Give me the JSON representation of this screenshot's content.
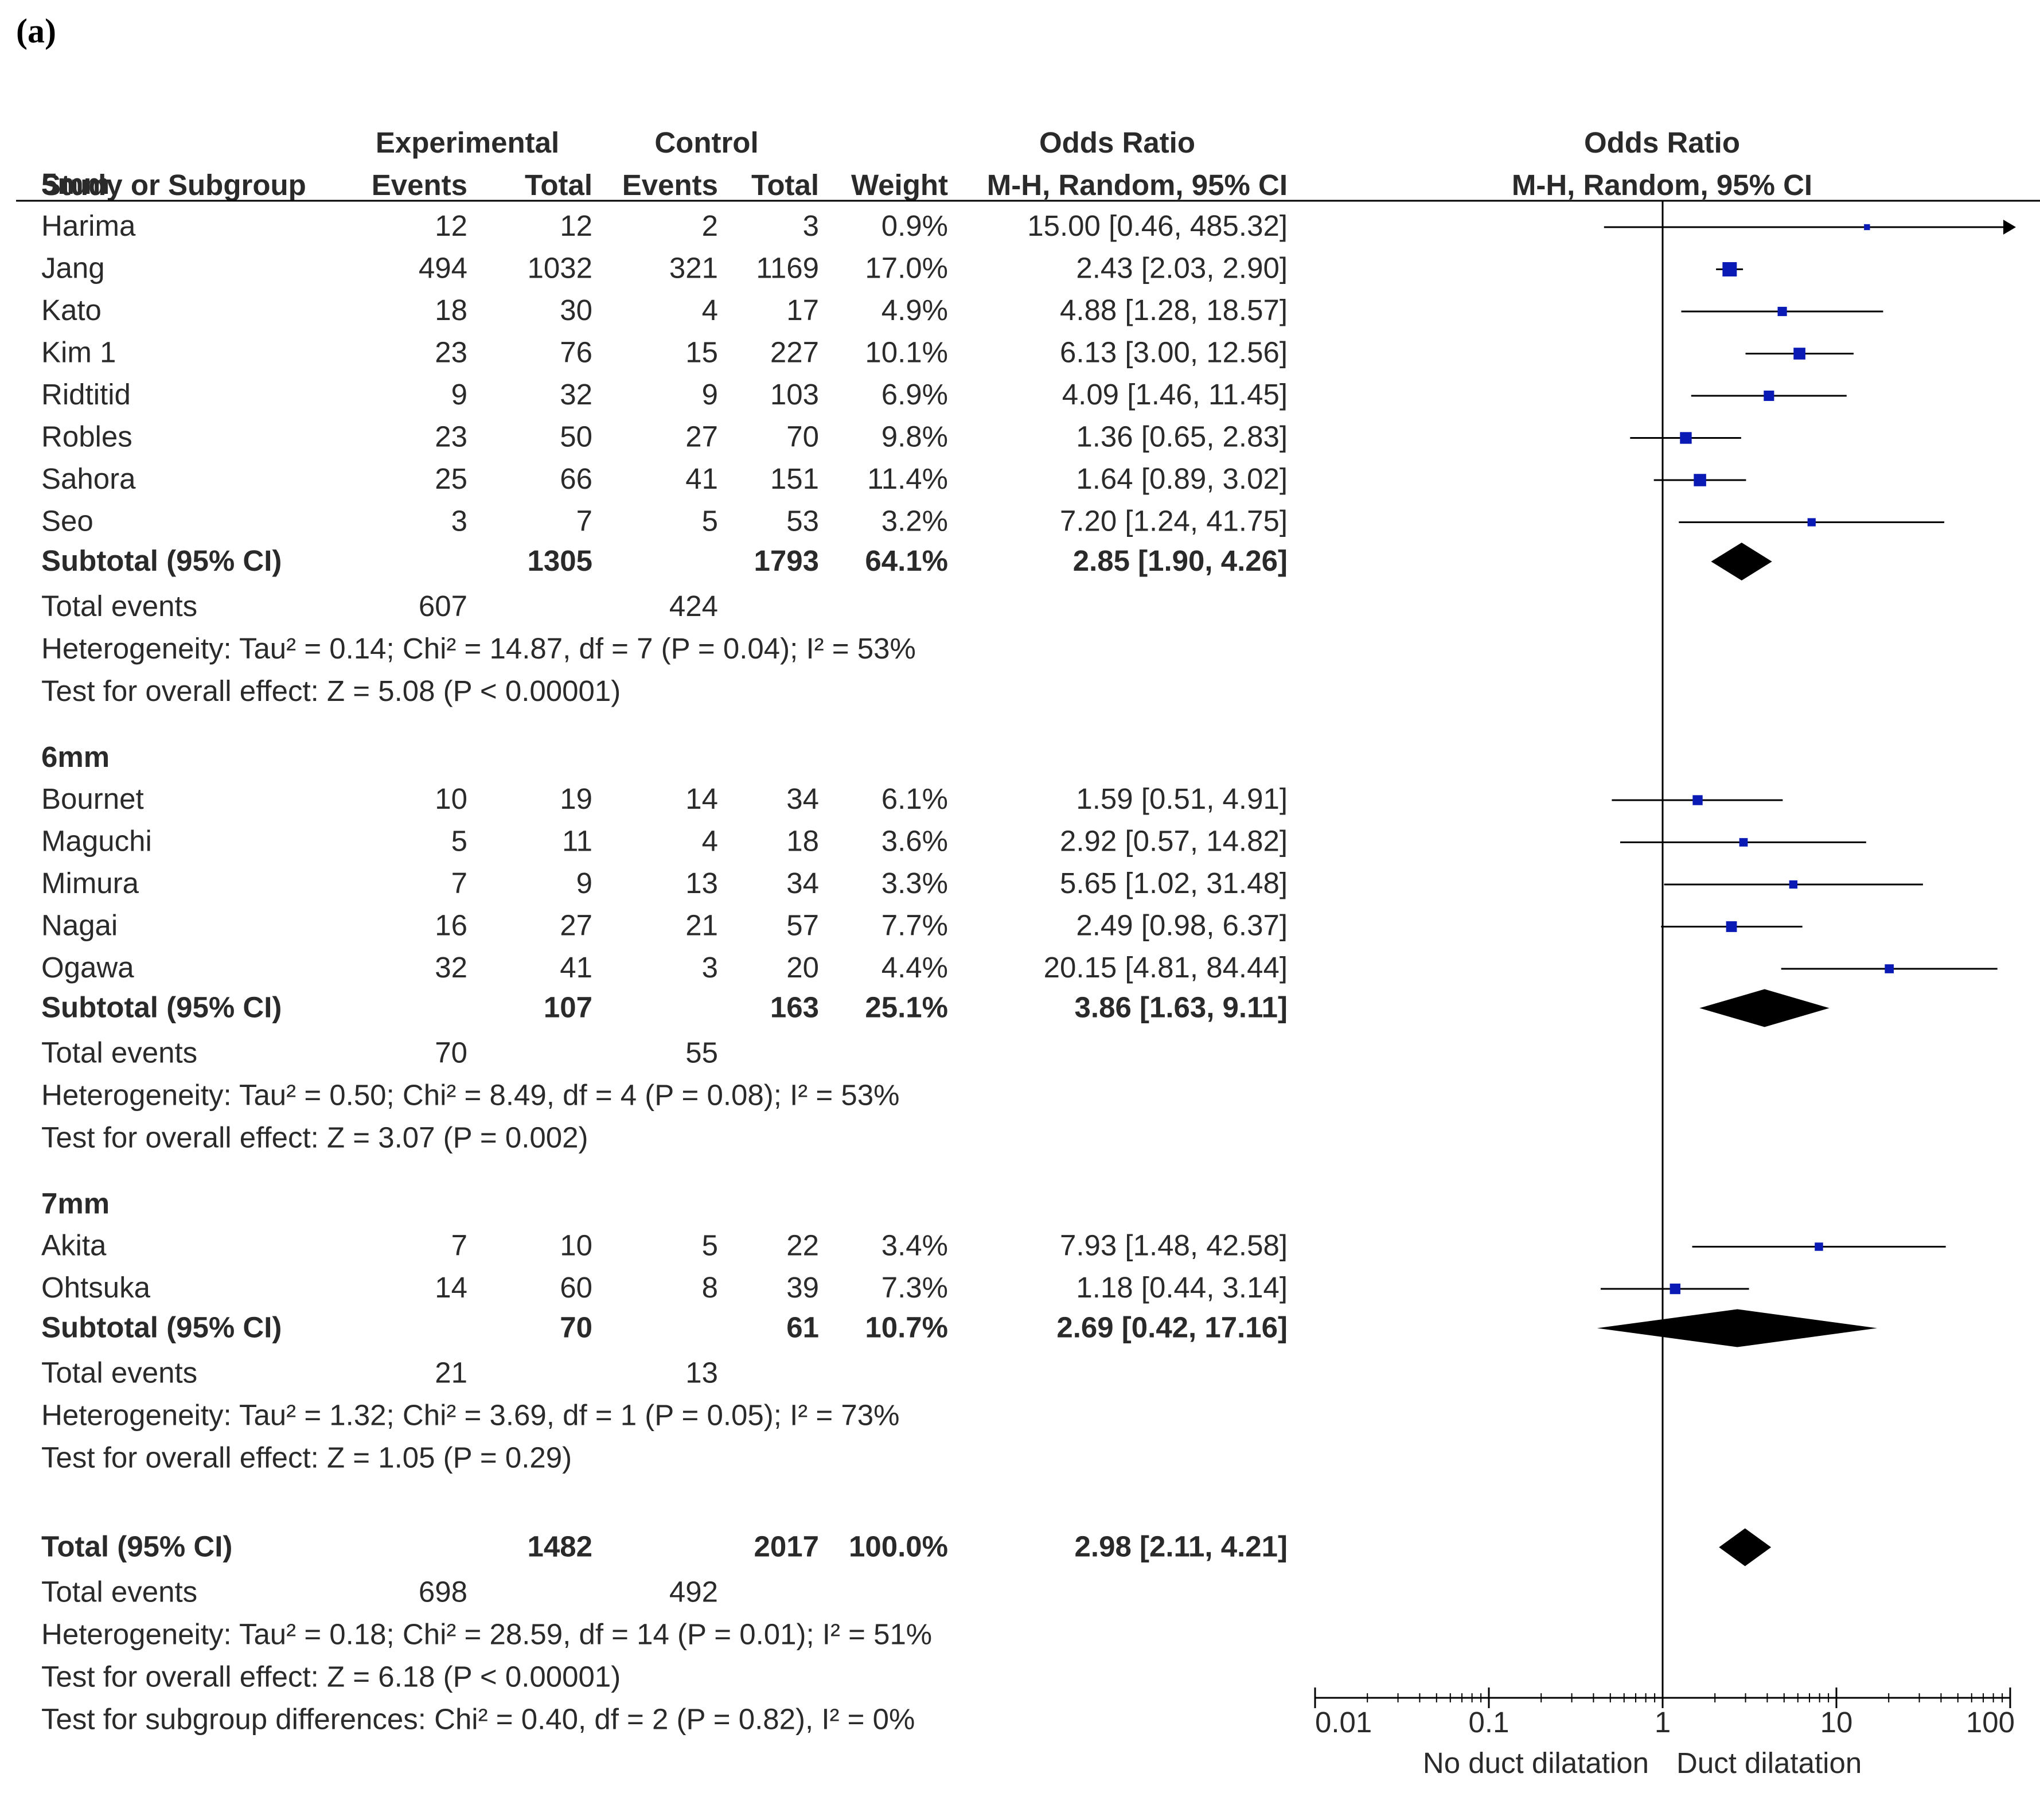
{
  "panel_label": "(a)",
  "headers": {
    "experimental": "Experimental",
    "control": "Control",
    "or_table": "Odds Ratio",
    "or_plot": "Odds Ratio",
    "study": "Study or Subgroup",
    "events_exp": "Events",
    "total_exp": "Total",
    "events_ctrl": "Events",
    "total_ctrl": "Total",
    "weight": "Weight",
    "method_table": "M-H, Random, 95% CI",
    "method_plot": "M-H, Random, 95% CI"
  },
  "chart_data": {
    "type": "forest",
    "title": "Odds Ratio",
    "method": "M-H, Random, 95% CI",
    "x_scale": "log",
    "xlim": [
      0.01,
      100
    ],
    "x_ticks": [
      "0.01",
      "0.1",
      "1",
      "10",
      "100"
    ],
    "x_tick_values": [
      0.01,
      0.1,
      1,
      10,
      100
    ],
    "null_line": 1,
    "favours_left": "No duct dilatation",
    "favours_right": "Duct dilatation",
    "groups": [
      {
        "name": "5mm",
        "studies": [
          {
            "name": "Harima",
            "e1": "12",
            "t1": "12",
            "e2": "2",
            "t2": "3",
            "weight": "0.9%",
            "ci": "15.00 [0.46, 485.32]",
            "or": 15.0,
            "lo": 0.46,
            "hi": 485.32,
            "w": 0.9
          },
          {
            "name": "Jang",
            "e1": "494",
            "t1": "1032",
            "e2": "321",
            "t2": "1169",
            "weight": "17.0%",
            "ci": "2.43 [2.03, 2.90]",
            "or": 2.43,
            "lo": 2.03,
            "hi": 2.9,
            "w": 17.0
          },
          {
            "name": "Kato",
            "e1": "18",
            "t1": "30",
            "e2": "4",
            "t2": "17",
            "weight": "4.9%",
            "ci": "4.88 [1.28, 18.57]",
            "or": 4.88,
            "lo": 1.28,
            "hi": 18.57,
            "w": 4.9
          },
          {
            "name": "Kim 1",
            "e1": "23",
            "t1": "76",
            "e2": "15",
            "t2": "227",
            "weight": "10.1%",
            "ci": "6.13 [3.00, 12.56]",
            "or": 6.13,
            "lo": 3.0,
            "hi": 12.56,
            "w": 10.1
          },
          {
            "name": "Ridtitid",
            "e1": "9",
            "t1": "32",
            "e2": "9",
            "t2": "103",
            "weight": "6.9%",
            "ci": "4.09 [1.46, 11.45]",
            "or": 4.09,
            "lo": 1.46,
            "hi": 11.45,
            "w": 6.9
          },
          {
            "name": "Robles",
            "e1": "23",
            "t1": "50",
            "e2": "27",
            "t2": "70",
            "weight": "9.8%",
            "ci": "1.36 [0.65, 2.83]",
            "or": 1.36,
            "lo": 0.65,
            "hi": 2.83,
            "w": 9.8
          },
          {
            "name": "Sahora",
            "e1": "25",
            "t1": "66",
            "e2": "41",
            "t2": "151",
            "weight": "11.4%",
            "ci": "1.64 [0.89, 3.02]",
            "or": 1.64,
            "lo": 0.89,
            "hi": 3.02,
            "w": 11.4
          },
          {
            "name": "Seo",
            "e1": "3",
            "t1": "7",
            "e2": "5",
            "t2": "53",
            "weight": "3.2%",
            "ci": "7.20 [1.24, 41.75]",
            "or": 7.2,
            "lo": 1.24,
            "hi": 41.75,
            "w": 3.2
          }
        ],
        "subtotal": {
          "label": "Subtotal (95% CI)",
          "t1": "1305",
          "t2": "1793",
          "weight": "64.1%",
          "ci": "2.85 [1.90, 4.26]",
          "or": 2.85,
          "lo": 1.9,
          "hi": 4.26
        },
        "total_events": {
          "label": "Total events",
          "e1": "607",
          "e2": "424"
        },
        "heterogeneity": "Heterogeneity: Tau² = 0.14; Chi² = 14.87, df = 7 (P = 0.04); I² = 53%",
        "overall_effect": "Test for overall effect: Z = 5.08 (P < 0.00001)"
      },
      {
        "name": "6mm",
        "studies": [
          {
            "name": "Bournet",
            "e1": "10",
            "t1": "19",
            "e2": "14",
            "t2": "34",
            "weight": "6.1%",
            "ci": "1.59 [0.51, 4.91]",
            "or": 1.59,
            "lo": 0.51,
            "hi": 4.91,
            "w": 6.1
          },
          {
            "name": "Maguchi",
            "e1": "5",
            "t1": "11",
            "e2": "4",
            "t2": "18",
            "weight": "3.6%",
            "ci": "2.92 [0.57, 14.82]",
            "or": 2.92,
            "lo": 0.57,
            "hi": 14.82,
            "w": 3.6
          },
          {
            "name": "Mimura",
            "e1": "7",
            "t1": "9",
            "e2": "13",
            "t2": "34",
            "weight": "3.3%",
            "ci": "5.65 [1.02, 31.48]",
            "or": 5.65,
            "lo": 1.02,
            "hi": 31.48,
            "w": 3.3
          },
          {
            "name": "Nagai",
            "e1": "16",
            "t1": "27",
            "e2": "21",
            "t2": "57",
            "weight": "7.7%",
            "ci": "2.49 [0.98, 6.37]",
            "or": 2.49,
            "lo": 0.98,
            "hi": 6.37,
            "w": 7.7
          },
          {
            "name": "Ogawa",
            "e1": "32",
            "t1": "41",
            "e2": "3",
            "t2": "20",
            "weight": "4.4%",
            "ci": "20.15 [4.81, 84.44]",
            "or": 20.15,
            "lo": 4.81,
            "hi": 84.44,
            "w": 4.4
          }
        ],
        "subtotal": {
          "label": "Subtotal (95% CI)",
          "t1": "107",
          "t2": "163",
          "weight": "25.1%",
          "ci": "3.86 [1.63, 9.11]",
          "or": 3.86,
          "lo": 1.63,
          "hi": 9.11
        },
        "total_events": {
          "label": "Total events",
          "e1": "70",
          "e2": "55"
        },
        "heterogeneity": "Heterogeneity: Tau² = 0.50; Chi² = 8.49, df = 4 (P = 0.08); I² = 53%",
        "overall_effect": "Test for overall effect: Z = 3.07 (P = 0.002)"
      },
      {
        "name": "7mm",
        "studies": [
          {
            "name": "Akita",
            "e1": "7",
            "t1": "10",
            "e2": "5",
            "t2": "22",
            "weight": "3.4%",
            "ci": "7.93 [1.48, 42.58]",
            "or": 7.93,
            "lo": 1.48,
            "hi": 42.58,
            "w": 3.4
          },
          {
            "name": "Ohtsuka",
            "e1": "14",
            "t1": "60",
            "e2": "8",
            "t2": "39",
            "weight": "7.3%",
            "ci": "1.18 [0.44, 3.14]",
            "or": 1.18,
            "lo": 0.44,
            "hi": 3.14,
            "w": 7.3
          }
        ],
        "subtotal": {
          "label": "Subtotal (95% CI)",
          "t1": "70",
          "t2": "61",
          "weight": "10.7%",
          "ci": "2.69 [0.42, 17.16]",
          "or": 2.69,
          "lo": 0.42,
          "hi": 17.16
        },
        "total_events": {
          "label": "Total events",
          "e1": "21",
          "e2": "13"
        },
        "heterogeneity": "Heterogeneity: Tau² = 1.32; Chi² = 3.69, df = 1 (P = 0.05); I² = 73%",
        "overall_effect": "Test for overall effect: Z = 1.05 (P = 0.29)"
      }
    ],
    "total": {
      "label": "Total (95% CI)",
      "t1": "1482",
      "t2": "2017",
      "weight": "100.0%",
      "ci": "2.98 [2.11, 4.21]",
      "or": 2.98,
      "lo": 2.11,
      "hi": 4.21,
      "events_label": "Total events",
      "e1": "698",
      "e2": "492",
      "heterogeneity": "Heterogeneity: Tau² = 0.18; Chi² = 28.59, df = 14 (P = 0.01); I² = 51%",
      "overall_effect": "Test for overall effect: Z = 6.18 (P < 0.00001)",
      "subgroup_test": "Test for subgroup differences: Chi² = 0.40, df = 2 (P = 0.82), I² = 0%"
    }
  },
  "colors": {
    "text": "#2a2a2a",
    "study_marker": "#0a1ab5",
    "diamond": "#000000",
    "line": "#000000"
  }
}
